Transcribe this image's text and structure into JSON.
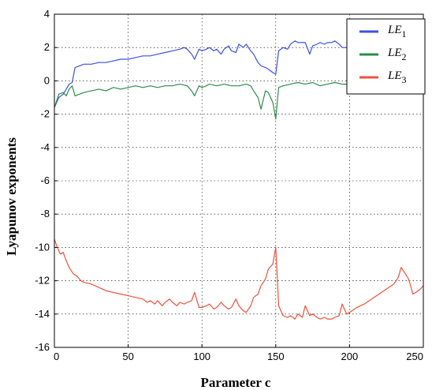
{
  "chart_data": {
    "type": "line",
    "title": "",
    "xlabel": "Parameter c",
    "ylabel": "Lyapunov exponents",
    "xlim": [
      0,
      250
    ],
    "ylim": [
      -16,
      4
    ],
    "xticks": [
      "0",
      "50",
      "100",
      "150",
      "200",
      "250"
    ],
    "yticks": [
      "4",
      "2",
      "0",
      "-2",
      "-4",
      "-6",
      "-8",
      "-10",
      "-12",
      "-14",
      "-16"
    ],
    "grid": true,
    "legend_position": "top-right",
    "series": [
      {
        "name": "LE1",
        "color": "#3c50e6",
        "x": [
          0,
          3,
          6,
          8,
          10,
          12,
          14,
          17,
          20,
          25,
          30,
          35,
          40,
          45,
          50,
          55,
          60,
          65,
          70,
          75,
          80,
          85,
          88,
          90,
          93,
          95,
          98,
          100,
          103,
          105,
          108,
          110,
          113,
          115,
          118,
          120,
          123,
          125,
          128,
          130,
          133,
          135,
          138,
          140,
          143,
          145,
          148,
          150,
          152,
          155,
          158,
          160,
          163,
          165,
          168,
          170,
          173,
          175,
          178,
          180,
          183,
          185,
          188,
          190,
          193,
          195,
          198,
          200
        ],
        "y": [
          -1.6,
          -1.0,
          -0.8,
          -0.5,
          -0.2,
          -0.1,
          0.8,
          0.9,
          1.0,
          1.0,
          1.1,
          1.1,
          1.2,
          1.3,
          1.3,
          1.4,
          1.5,
          1.5,
          1.6,
          1.7,
          1.8,
          1.9,
          2.0,
          1.9,
          1.6,
          1.3,
          1.9,
          1.8,
          1.9,
          2.0,
          1.8,
          1.9,
          1.6,
          1.9,
          2.1,
          1.8,
          1.7,
          2.2,
          2.0,
          2.2,
          1.8,
          1.6,
          1.1,
          0.9,
          0.8,
          0.7,
          0.5,
          0.4,
          1.8,
          2.0,
          1.9,
          2.2,
          2.4,
          2.3,
          2.3,
          2.3,
          1.6,
          2.1,
          2.2,
          2.3,
          2.2,
          2.3,
          2.3,
          2.4,
          2.2,
          2.0,
          2.0,
          2.0
        ]
      },
      {
        "name": "LE2",
        "color": "#2e8b4a",
        "x": [
          0,
          3,
          6,
          8,
          10,
          12,
          14,
          17,
          20,
          25,
          30,
          35,
          40,
          45,
          50,
          55,
          60,
          65,
          70,
          75,
          80,
          85,
          90,
          93,
          95,
          98,
          100,
          103,
          105,
          110,
          115,
          120,
          125,
          130,
          133,
          135,
          138,
          140,
          143,
          145,
          148,
          150,
          152,
          155,
          160,
          165,
          170,
          175,
          180,
          185,
          190,
          195,
          200
        ],
        "y": [
          -1.6,
          -0.8,
          -0.7,
          -0.9,
          -0.5,
          -0.3,
          -0.9,
          -0.8,
          -0.7,
          -0.6,
          -0.5,
          -0.6,
          -0.4,
          -0.5,
          -0.4,
          -0.3,
          -0.4,
          -0.3,
          -0.4,
          -0.3,
          -0.3,
          -0.2,
          -0.3,
          -0.6,
          -0.9,
          -0.3,
          -0.4,
          -0.3,
          -0.2,
          -0.3,
          -0.2,
          -0.3,
          -0.3,
          -0.2,
          -0.3,
          -0.6,
          -1.0,
          -1.7,
          -0.6,
          -0.7,
          -1.3,
          -2.3,
          -0.4,
          -0.3,
          -0.2,
          -0.1,
          -0.2,
          -0.1,
          -0.3,
          -0.2,
          -0.1,
          -0.2,
          -0.2
        ]
      },
      {
        "name": "LE3",
        "color": "#f0503c",
        "x": [
          0,
          2,
          4,
          6,
          8,
          10,
          13,
          15,
          18,
          20,
          25,
          30,
          35,
          40,
          45,
          50,
          55,
          60,
          63,
          65,
          68,
          70,
          73,
          75,
          78,
          80,
          83,
          85,
          88,
          90,
          93,
          95,
          98,
          100,
          103,
          105,
          108,
          110,
          113,
          115,
          118,
          120,
          123,
          125,
          128,
          130,
          133,
          135,
          138,
          140,
          143,
          145,
          148,
          150,
          152,
          155,
          158,
          160,
          163,
          165,
          168,
          170,
          173,
          175,
          178,
          180,
          183,
          185,
          188,
          190,
          193,
          195,
          198,
          200,
          205,
          210,
          215,
          220,
          225,
          230,
          233,
          235,
          238,
          240,
          243,
          245,
          248,
          250
        ],
        "y": [
          -9.5,
          -10.0,
          -10.4,
          -10.3,
          -10.8,
          -11.2,
          -11.6,
          -11.7,
          -12.0,
          -12.1,
          -12.2,
          -12.4,
          -12.6,
          -12.7,
          -12.8,
          -12.9,
          -13.0,
          -13.1,
          -13.3,
          -13.2,
          -13.4,
          -13.2,
          -13.5,
          -13.3,
          -13.1,
          -13.3,
          -13.5,
          -13.3,
          -13.4,
          -13.3,
          -13.2,
          -12.7,
          -13.6,
          -13.6,
          -13.5,
          -13.4,
          -13.7,
          -13.6,
          -13.3,
          -13.5,
          -13.7,
          -13.6,
          -13.1,
          -13.5,
          -13.8,
          -13.9,
          -13.5,
          -13.0,
          -12.8,
          -12.3,
          -11.9,
          -11.3,
          -11.0,
          -10.0,
          -13.5,
          -14.1,
          -14.2,
          -14.1,
          -14.3,
          -14.0,
          -14.2,
          -13.5,
          -14.1,
          -14.0,
          -14.2,
          -14.3,
          -14.2,
          -14.3,
          -14.3,
          -14.2,
          -14.1,
          -13.4,
          -14.0,
          -13.9,
          -13.6,
          -13.4,
          -13.1,
          -12.8,
          -12.5,
          -12.2,
          -11.8,
          -11.2,
          -11.6,
          -11.9,
          -12.8,
          -12.7,
          -12.5,
          -12.3
        ]
      }
    ]
  }
}
